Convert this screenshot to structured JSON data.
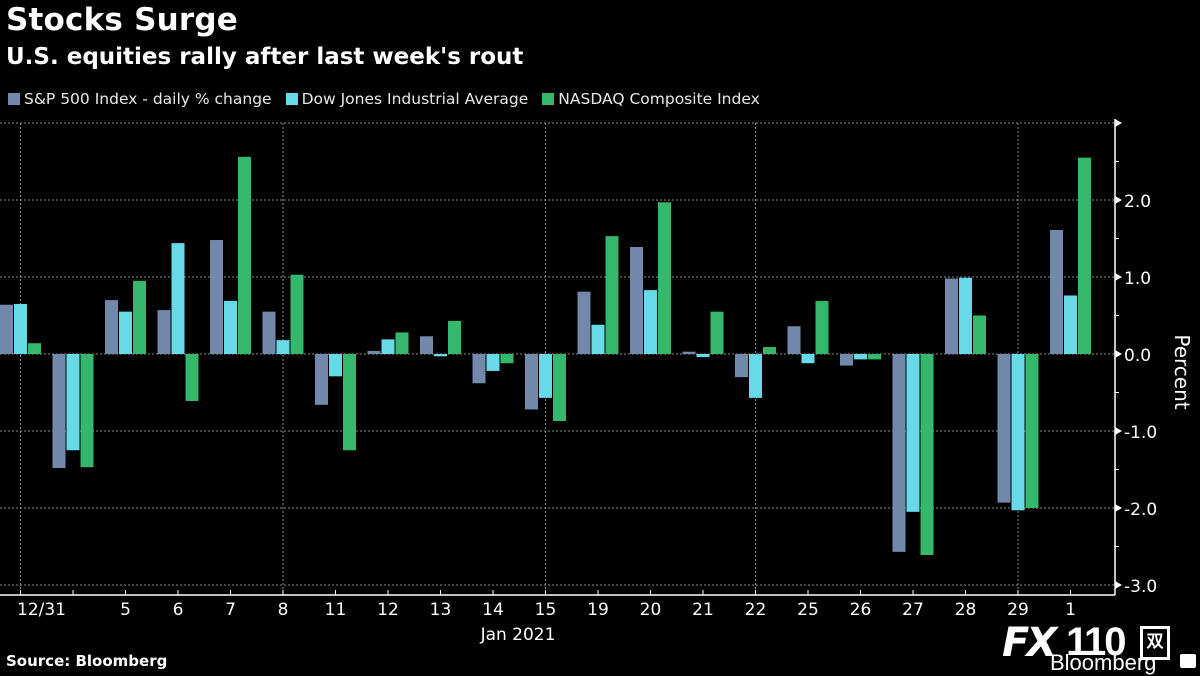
{
  "header": {
    "title": "Stocks Surge",
    "subtitle": "U.S. equities rally after last week's rout"
  },
  "footer": {
    "source": "Source: Bloomberg",
    "watermark_brand": "FX",
    "watermark_number": "110",
    "watermark_box": "双",
    "watermark_bloomberg": "Bloomberg"
  },
  "chart_data": {
    "type": "bar",
    "title": "Stocks Surge",
    "subtitle": "U.S. equities rally after last week's rout",
    "xlabel": "Jan 2021",
    "ylabel": "Percent",
    "ylim": [
      -3.0,
      3.0
    ],
    "yticks": [
      -3.0,
      -2.0,
      -1.0,
      0.0,
      1.0,
      2.0
    ],
    "ytick_labels": [
      "-3.0",
      "-2.0",
      "-1.0",
      "0.0",
      "1.0",
      "2.0"
    ],
    "y_axis_position": "right",
    "legend_position": "top-left",
    "grid": true,
    "vertical_grid_at": [
      "12/31",
      "8",
      "15",
      "22",
      "29"
    ],
    "categories": [
      "12/31",
      "",
      "5",
      "6",
      "7",
      "8",
      "11",
      "12",
      "13",
      "14",
      "15",
      "19",
      "20",
      "21",
      "22",
      "25",
      "26",
      "27",
      "28",
      "29",
      "1"
    ],
    "category_dates": [
      "2020-12-31",
      "2021-01-04",
      "2021-01-05",
      "2021-01-06",
      "2021-01-07",
      "2021-01-08",
      "2021-01-11",
      "2021-01-12",
      "2021-01-13",
      "2021-01-14",
      "2021-01-15",
      "2021-01-19",
      "2021-01-20",
      "2021-01-21",
      "2021-01-22",
      "2021-01-25",
      "2021-01-26",
      "2021-01-27",
      "2021-01-28",
      "2021-01-29",
      "2021-02-01"
    ],
    "series": [
      {
        "name": "S&P 500 Index - daily % change",
        "color": "#7289ab",
        "values": [
          0.64,
          -1.48,
          0.7,
          0.57,
          1.48,
          0.55,
          -0.66,
          0.04,
          0.23,
          -0.38,
          -0.72,
          0.81,
          1.39,
          0.03,
          -0.3,
          0.36,
          -0.15,
          -2.57,
          0.98,
          -1.93,
          1.61
        ]
      },
      {
        "name": "Dow Jones Industrial Average",
        "color": "#67d9e7",
        "values": [
          0.65,
          -1.25,
          0.55,
          1.44,
          0.69,
          0.18,
          -0.29,
          0.19,
          -0.03,
          -0.22,
          -0.57,
          0.38,
          0.83,
          -0.04,
          -0.57,
          -0.12,
          -0.07,
          -2.05,
          0.99,
          -2.03,
          0.76
        ]
      },
      {
        "name": "NASDAQ Composite Index",
        "color": "#36b86c",
        "values": [
          0.14,
          -1.47,
          0.95,
          -0.61,
          2.56,
          1.03,
          -1.25,
          0.28,
          0.43,
          -0.12,
          -0.87,
          1.53,
          1.97,
          0.55,
          0.09,
          0.69,
          -0.07,
          -2.61,
          0.5,
          -2.0,
          2.55
        ]
      }
    ]
  }
}
